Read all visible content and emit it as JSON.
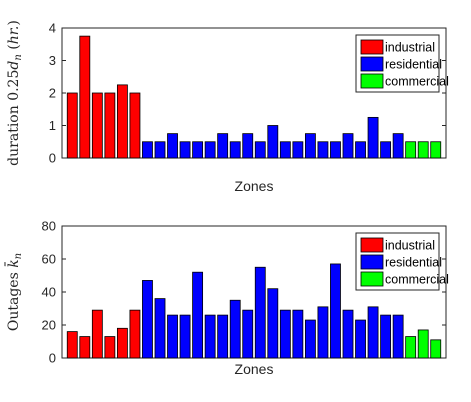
{
  "chart_data": [
    {
      "type": "bar",
      "ylabel": "duration 0.25d_n (hr.)",
      "ylabel_parts": [
        "duration 0.25",
        "d",
        "n",
        " (",
        "hr.",
        ")"
      ],
      "xlabel": "Zones",
      "ylim": [
        0,
        4
      ],
      "yticks": [
        "0",
        "1",
        "2",
        "3",
        "4"
      ],
      "legend": {
        "placement": "top-right",
        "entries": [
          {
            "label": "industrial",
            "color": "#ff0000"
          },
          {
            "label": "residential",
            "color": "#0000ff"
          },
          {
            "label": "commercial",
            "color": "#00ff00"
          }
        ]
      },
      "series": [
        {
          "category": "industrial",
          "color": "#ff0000",
          "values": [
            2,
            3.75,
            2,
            2,
            2.25,
            2
          ]
        },
        {
          "category": "residential",
          "color": "#0000ff",
          "values": [
            0.5,
            0.5,
            0.75,
            0.5,
            0.5,
            0.5,
            0.75,
            0.5,
            0.75,
            0.5,
            1,
            0.5,
            0.5,
            0.75,
            0.5,
            0.5,
            0.75,
            0.5,
            1.25,
            0.5,
            0.75
          ]
        },
        {
          "category": "commercial",
          "color": "#00ff00",
          "values": [
            0.5,
            0.5,
            0.5
          ]
        }
      ]
    },
    {
      "type": "bar",
      "ylabel": "Outages k̄_n",
      "ylabel_parts": [
        "Outages ",
        "k̄",
        "n"
      ],
      "xlabel": "Zones",
      "ylim": [
        0,
        80
      ],
      "yticks": [
        "0",
        "20",
        "40",
        "60",
        "80"
      ],
      "legend": {
        "placement": "top-right",
        "entries": [
          {
            "label": "industrial",
            "color": "#ff0000"
          },
          {
            "label": "residential",
            "color": "#0000ff"
          },
          {
            "label": "commercial",
            "color": "#00ff00"
          }
        ]
      },
      "series": [
        {
          "category": "industrial",
          "color": "#ff0000",
          "values": [
            16,
            13,
            29,
            13,
            18,
            29
          ]
        },
        {
          "category": "residential",
          "color": "#0000ff",
          "values": [
            47,
            36,
            26,
            26,
            52,
            26,
            26,
            35,
            29,
            55,
            42,
            29,
            29,
            23,
            31,
            57,
            29,
            23,
            31,
            26,
            26
          ]
        },
        {
          "category": "commercial",
          "color": "#00ff00",
          "values": [
            13,
            17,
            11
          ]
        }
      ]
    }
  ]
}
